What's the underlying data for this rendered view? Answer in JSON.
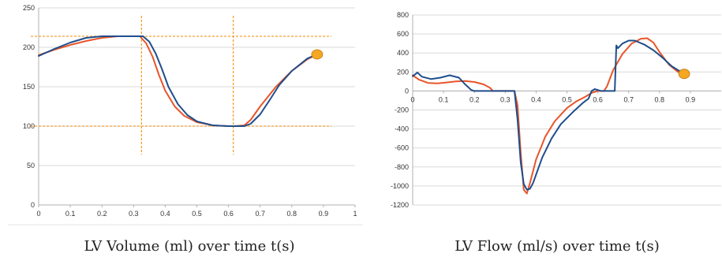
{
  "chart_data": [
    {
      "type": "line",
      "caption": "LV Volume (ml) over time t(s)",
      "xlim": [
        0,
        1
      ],
      "ylim": [
        0,
        250
      ],
      "xticks": [
        "0",
        "0.1",
        "0.2",
        "0.3",
        "0.4",
        "0.5",
        "0.6",
        "0.7",
        "0.8",
        "0.9",
        "1"
      ],
      "yticks": [
        "0",
        "50",
        "100",
        "150",
        "200",
        "250"
      ],
      "grid": true,
      "series": [
        {
          "color": "#e8552a",
          "x": [
            0,
            0.05,
            0.1,
            0.15,
            0.2,
            0.25,
            0.3,
            0.32,
            0.34,
            0.36,
            0.38,
            0.4,
            0.43,
            0.46,
            0.5,
            0.55,
            0.6,
            0.62,
            0.65,
            0.67,
            0.7,
            0.75,
            0.8,
            0.85,
            0.88
          ],
          "y": [
            190,
            197,
            203,
            208,
            212,
            214,
            214,
            214,
            205,
            188,
            165,
            145,
            125,
            113,
            105,
            101,
            100,
            100,
            101,
            108,
            125,
            150,
            170,
            185,
            191
          ]
        },
        {
          "color": "#1f4e8c",
          "x": [
            0,
            0.05,
            0.1,
            0.15,
            0.2,
            0.25,
            0.3,
            0.33,
            0.35,
            0.37,
            0.39,
            0.41,
            0.44,
            0.47,
            0.5,
            0.55,
            0.6,
            0.62,
            0.65,
            0.67,
            0.7,
            0.73,
            0.76,
            0.8,
            0.85,
            0.88
          ],
          "y": [
            189,
            198,
            206,
            212,
            214,
            214,
            214,
            214,
            207,
            192,
            172,
            150,
            128,
            114,
            106,
            101,
            100,
            100,
            100,
            103,
            115,
            133,
            152,
            170,
            186,
            191
          ]
        }
      ],
      "marker": {
        "x": 0.88,
        "y": 191,
        "color": "#f5a623"
      },
      "reference_lines": {
        "horizontal": [
          214,
          100
        ],
        "vertical": [
          0.325,
          0.615
        ],
        "color": "#f0a030"
      }
    },
    {
      "type": "line",
      "caption": "LV Flow (ml/s) over time t(s)",
      "xlim": [
        0,
        1
      ],
      "ylim": [
        -1200,
        800
      ],
      "xticks": [
        "0",
        "0.1",
        "0.2",
        "0.3",
        "0.4",
        "0.5",
        "0.6",
        "0.7",
        "0.8",
        "0.9"
      ],
      "yticks": [
        "-1200",
        "-1000",
        "-800",
        "-600",
        "-400",
        "-200",
        "0",
        "200",
        "400",
        "600",
        "800"
      ],
      "grid": true,
      "series": [
        {
          "color": "#e8552a",
          "x": [
            0,
            0.02,
            0.05,
            0.08,
            0.11,
            0.14,
            0.17,
            0.2,
            0.23,
            0.25,
            0.26,
            0.27,
            0.3,
            0.31,
            0.33,
            0.34,
            0.35,
            0.36,
            0.37,
            0.38,
            0.4,
            0.43,
            0.46,
            0.5,
            0.53,
            0.56,
            0.58,
            0.6,
            0.62,
            0.63,
            0.65,
            0.68,
            0.71,
            0.74,
            0.76,
            0.78,
            0.8,
            0.83,
            0.86,
            0.88
          ],
          "y": [
            165,
            120,
            85,
            80,
            90,
            100,
            105,
            95,
            70,
            35,
            0,
            0,
            0,
            0,
            0,
            -150,
            -650,
            -1040,
            -1080,
            -970,
            -720,
            -480,
            -320,
            -180,
            -110,
            -60,
            -20,
            0,
            0,
            50,
            220,
            390,
            500,
            550,
            555,
            510,
            410,
            280,
            200,
            180
          ]
        },
        {
          "color": "#1f4e8c",
          "x": [
            0,
            0.01,
            0.015,
            0.03,
            0.06,
            0.09,
            0.12,
            0.15,
            0.17,
            0.19,
            0.2,
            0.25,
            0.3,
            0.33,
            0.34,
            0.35,
            0.36,
            0.37,
            0.38,
            0.39,
            0.4,
            0.42,
            0.45,
            0.48,
            0.52,
            0.55,
            0.57,
            0.58,
            0.59,
            0.61,
            0.64,
            0.655,
            0.66,
            0.665,
            0.68,
            0.7,
            0.72,
            0.75,
            0.78,
            0.81,
            0.84,
            0.88
          ],
          "y": [
            155,
            180,
            195,
            150,
            125,
            140,
            165,
            140,
            70,
            10,
            0,
            0,
            0,
            0,
            -300,
            -750,
            -980,
            -1040,
            -1030,
            -970,
            -880,
            -700,
            -500,
            -350,
            -220,
            -130,
            -80,
            0,
            20,
            0,
            0,
            0,
            480,
            450,
            500,
            530,
            530,
            490,
            430,
            350,
            260,
            180
          ]
        }
      ],
      "marker": {
        "x": 0.88,
        "y": 180,
        "color": "#f5a623"
      }
    }
  ]
}
